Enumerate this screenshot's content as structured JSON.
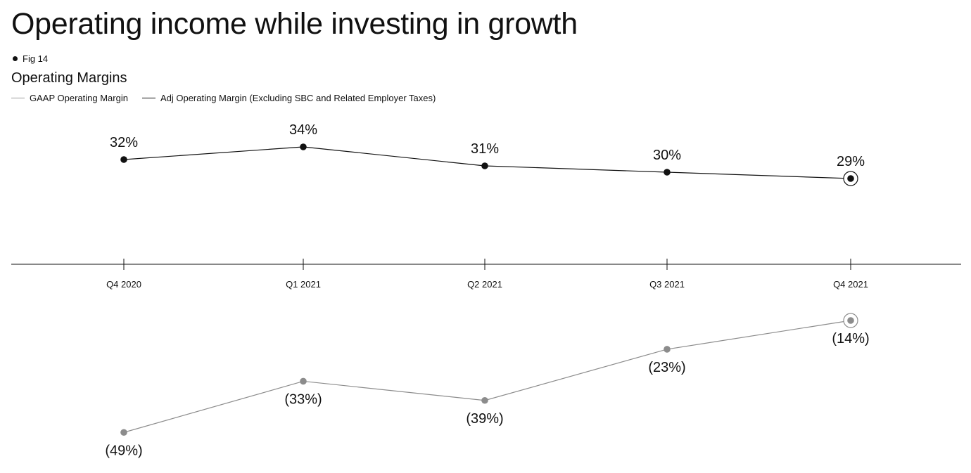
{
  "page": {
    "headline": "Operating income while investing in growth"
  },
  "figure": {
    "tag": "Fig 14"
  },
  "chart_data": {
    "type": "line",
    "title": "Operating Margins",
    "categories": [
      "Q4 2020",
      "Q1 2021",
      "Q2 2021",
      "Q3 2021",
      "Q4 2021"
    ],
    "series": [
      {
        "name": "GAAP Operating Margin",
        "values": [
          -49,
          -33,
          -39,
          -23,
          -14
        ],
        "labels": [
          "(49%)",
          "(33%)",
          "(39%)",
          "(23%)",
          "(14%)"
        ],
        "color": "#8c8c8c"
      },
      {
        "name": "Adj Operating Margin (Excluding SBC and Related Employer Taxes)",
        "values": [
          32,
          34,
          31,
          30,
          29
        ],
        "labels": [
          "32%",
          "34%",
          "31%",
          "30%",
          "29%"
        ],
        "color": "#111111"
      }
    ],
    "ylim": [
      -55,
      45
    ],
    "axis_color": "#111111",
    "grid": false,
    "legend_position": "top-left",
    "last_point_highlighted": true
  }
}
